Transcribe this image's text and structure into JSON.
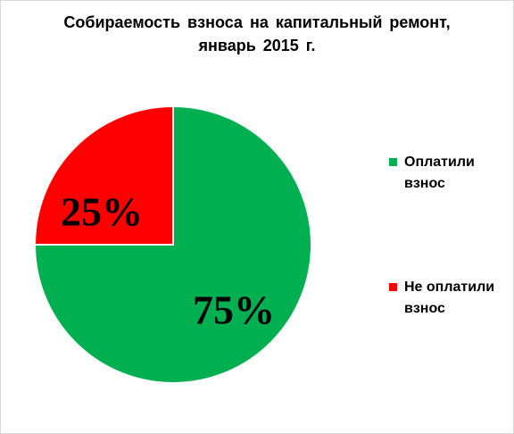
{
  "chart_data": {
    "type": "pie",
    "title": [
      "Собираемость взноса на капитальный ремонт,",
      "январь 2015 г."
    ],
    "slices": [
      {
        "label": "Оплатили взнос",
        "value": 75,
        "display": "75%",
        "color": "#00b050"
      },
      {
        "label": "Не оплатили взнос",
        "value": 25,
        "display": "25%",
        "color": "#ff0000"
      }
    ],
    "start": "12 o'clock",
    "direction": "clockwise",
    "legend_position": "right"
  },
  "legend": [
    {
      "label": "Оплатили взнос",
      "color": "#00b050"
    },
    {
      "label": "Не оплатили взнос",
      "color": "#ff0000"
    }
  ]
}
